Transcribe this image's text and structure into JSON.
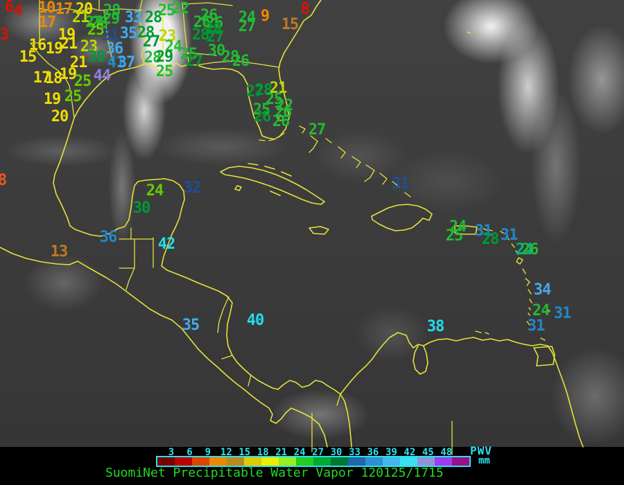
{
  "header": {},
  "palette": {
    "red": "#dd1100",
    "orangered": "#ee5522",
    "orange": "#ee8800",
    "brown": "#c07a22",
    "yellow": "#eedd00",
    "yellowgreen": "#b8d800",
    "lime": "#66cc00",
    "green": "#22bb33",
    "darkgreen": "#009933",
    "teal": "#00bb88",
    "navy": "#1d4f99",
    "blue": "#2288cc",
    "lightblue": "#44aaee",
    "cyan": "#22ddee",
    "purple": "#8f7fe0"
  },
  "map": {
    "outline_color": "#e6e23c",
    "stations": [
      [
        "6",
        "red",
        13,
        11
      ],
      [
        "4",
        "red",
        26,
        16
      ],
      [
        "3",
        "red",
        6,
        51
      ],
      [
        "8",
        "orangered",
        3,
        261
      ],
      [
        "10",
        "orange",
        67,
        12
      ],
      [
        "17",
        "orange",
        92,
        14
      ],
      [
        "17",
        "orange",
        68,
        33
      ],
      [
        "20",
        "yellow",
        121,
        14
      ],
      [
        "21",
        "yellowgreen",
        116,
        26
      ],
      [
        "19",
        "yellow",
        96,
        51
      ],
      [
        "16",
        "yellow",
        54,
        66
      ],
      [
        "19",
        "yellow",
        78,
        71
      ],
      [
        "21",
        "yellow",
        99,
        64
      ],
      [
        "23",
        "yellowgreen",
        128,
        68
      ],
      [
        "15",
        "yellow",
        40,
        83
      ],
      [
        "30",
        "darkgreen",
        139,
        83
      ],
      [
        "21",
        "yellow",
        113,
        91
      ],
      [
        "17",
        "yellow",
        60,
        113
      ],
      [
        "18",
        "yellow",
        77,
        114
      ],
      [
        "19",
        "yellow",
        98,
        108
      ],
      [
        "25",
        "lime",
        119,
        118
      ],
      [
        "44",
        "purple",
        147,
        110
      ],
      [
        "19",
        "yellow",
        75,
        144
      ],
      [
        "25",
        "lime",
        105,
        140
      ],
      [
        "20",
        "yellow",
        86,
        169
      ],
      [
        "28",
        "green",
        161,
        16
      ],
      [
        "29",
        "green",
        160,
        28
      ],
      [
        "27",
        "green",
        135,
        33
      ],
      [
        "26",
        "green",
        143,
        34
      ],
      [
        "25",
        "lime",
        138,
        44
      ],
      [
        "31",
        "navy",
        159,
        52
      ],
      [
        "33",
        "lightblue",
        192,
        26
      ],
      [
        "28",
        "darkgreen",
        221,
        26
      ],
      [
        "35",
        "lightblue",
        185,
        49
      ],
      [
        "28",
        "darkgreen",
        210,
        48
      ],
      [
        "36",
        "lightblue",
        165,
        71
      ],
      [
        "41",
        "blue",
        167,
        91
      ],
      [
        "37",
        "lightblue",
        182,
        91
      ],
      [
        "25",
        "green",
        240,
        16
      ],
      [
        "22",
        "green",
        260,
        13
      ],
      [
        "23",
        "yellowgreen",
        241,
        53
      ],
      [
        "27",
        "darkgreen",
        218,
        61
      ],
      [
        "24",
        "green",
        250,
        68
      ],
      [
        "28",
        "green",
        220,
        84
      ],
      [
        "29",
        "darkgreen",
        237,
        83
      ],
      [
        "25",
        "green",
        237,
        104
      ],
      [
        "26",
        "green",
        301,
        23
      ],
      [
        "26",
        "green",
        291,
        33
      ],
      [
        "26",
        "green",
        309,
        34
      ],
      [
        "28",
        "darkgreen",
        307,
        43
      ],
      [
        "28",
        "darkgreen",
        289,
        51
      ],
      [
        "27",
        "darkgreen",
        310,
        54
      ],
      [
        "25",
        "green",
        272,
        79
      ],
      [
        "27",
        "darkgreen",
        280,
        89
      ],
      [
        "30",
        "green",
        312,
        74
      ],
      [
        "28",
        "green",
        332,
        83
      ],
      [
        "26",
        "green",
        347,
        89
      ],
      [
        "24",
        "green",
        356,
        26
      ],
      [
        "27",
        "green",
        356,
        39
      ],
      [
        "9",
        "orange",
        382,
        24
      ],
      [
        "15",
        "brown",
        418,
        36
      ],
      [
        "8",
        "red",
        440,
        14
      ],
      [
        "27",
        "darkgreen",
        367,
        133
      ],
      [
        "28",
        "darkgreen",
        380,
        131
      ],
      [
        "21",
        "yellowgreen",
        401,
        128
      ],
      [
        "25",
        "green",
        395,
        144
      ],
      [
        "22",
        "green",
        410,
        153
      ],
      [
        "25",
        "green",
        377,
        159
      ],
      [
        "26",
        "green",
        408,
        163
      ],
      [
        "26",
        "darkgreen",
        378,
        169
      ],
      [
        "26",
        "green",
        405,
        176
      ],
      [
        "27",
        "green",
        457,
        188
      ],
      [
        "31",
        "navy",
        577,
        266
      ],
      [
        "24",
        "green",
        660,
        328
      ],
      [
        "25",
        "green",
        655,
        341
      ],
      [
        "31",
        "blue",
        697,
        334
      ],
      [
        "28",
        "darkgreen",
        707,
        346
      ],
      [
        "31",
        "blue",
        734,
        340
      ],
      [
        "24",
        "teal",
        756,
        361
      ],
      [
        "26",
        "green",
        764,
        361
      ],
      [
        "34",
        "lightblue",
        782,
        419
      ],
      [
        "24",
        "green",
        780,
        449
      ],
      [
        "31",
        "blue",
        811,
        453
      ],
      [
        "31",
        "blue",
        773,
        471
      ],
      [
        "38",
        "cyan",
        628,
        472
      ],
      [
        "35",
        "lightblue",
        275,
        470
      ],
      [
        "40",
        "cyan",
        368,
        463
      ],
      [
        "24",
        "lime",
        223,
        276
      ],
      [
        "30",
        "darkgreen",
        204,
        301
      ],
      [
        "32",
        "navy",
        277,
        272
      ],
      [
        "42",
        "cyan",
        240,
        353
      ],
      [
        "36",
        "blue",
        156,
        343
      ],
      [
        "13",
        "brown",
        85,
        364
      ]
    ]
  },
  "colorbar": {
    "ticks": [
      "3",
      "6",
      "9",
      "12",
      "15",
      "18",
      "21",
      "24",
      "27",
      "30",
      "33",
      "36",
      "39",
      "42",
      "45",
      "48"
    ],
    "tick_color": "#2ee0ee",
    "segments": [
      "#770000",
      "#bb0000",
      "#dd4400",
      "#ee8800",
      "#bb8822",
      "#ddcc00",
      "#eeee00",
      "#99ee22",
      "#22cc22",
      "#00aa33",
      "#007733",
      "#2266aa",
      "#2e8fd0",
      "#45b6e8",
      "#3ae0f0",
      "#8e96d8",
      "#9b3ef0",
      "#99108c"
    ],
    "unit_primary": "PWV",
    "unit_secondary": "mm"
  },
  "footer": {
    "title": "SuomiNet Precipitable Water Vapor 120125/1715",
    "title_color": "#25d825"
  }
}
